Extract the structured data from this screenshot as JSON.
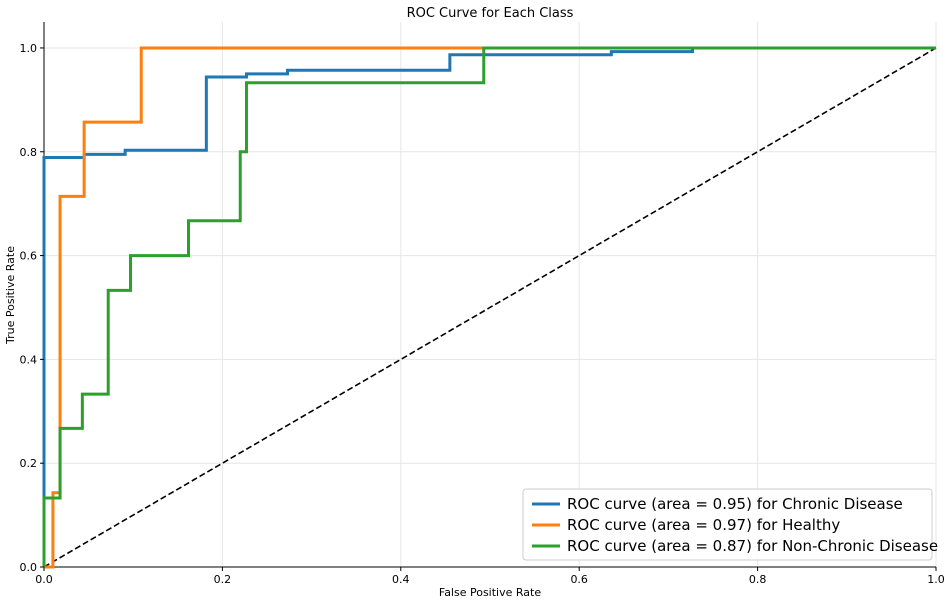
{
  "chart_data": {
    "type": "line",
    "title": "ROC Curve for Each Class",
    "xlabel": "False Positive Rate",
    "ylabel": "True Positive Rate",
    "xlim": [
      0,
      1
    ],
    "ylim": [
      0,
      1.05
    ],
    "xticks": [
      0,
      0.2,
      0.4,
      0.6,
      0.8,
      1.0
    ],
    "xtick_labels": [
      "0.0",
      "0.2",
      "0.4",
      "0.6",
      "0.8",
      "1.0"
    ],
    "yticks": [
      0,
      0.2,
      0.4,
      0.6,
      0.8,
      1.0
    ],
    "ytick_labels": [
      "0.0",
      "0.2",
      "0.4",
      "0.6",
      "0.8",
      "1.0"
    ],
    "grid": true,
    "legend_position": "lower-right",
    "series": [
      {
        "name": "ROC curve (area = 0.95) for Chronic Disease",
        "color": "#1f77b4",
        "x": [
          0,
          0,
          0,
          0.045,
          0.045,
          0.091,
          0.091,
          0.182,
          0.182,
          0.227,
          0.227,
          0.273,
          0.273,
          0.455,
          0.455,
          0.636,
          0.636,
          0.727,
          0.727,
          1.0
        ],
        "y": [
          0,
          0.0,
          0.789,
          0.789,
          0.795,
          0.795,
          0.803,
          0.803,
          0.944,
          0.944,
          0.95,
          0.95,
          0.957,
          0.957,
          0.987,
          0.987,
          0.993,
          0.993,
          1.0,
          1.0
        ]
      },
      {
        "name": "ROC curve (area = 0.97) for Healthy",
        "color": "#ff7f0e",
        "x": [
          0,
          0.01,
          0.01,
          0.018,
          0.018,
          0.045,
          0.045,
          0.109,
          0.109,
          1.0
        ],
        "y": [
          0,
          0,
          0.143,
          0.143,
          0.714,
          0.714,
          0.857,
          0.857,
          1.0,
          1.0
        ]
      },
      {
        "name": "ROC curve (area = 0.87) for Non-Chronic Disease",
        "color": "#2ca02c",
        "x": [
          0,
          0,
          0.018,
          0.018,
          0.043,
          0.043,
          0.072,
          0.072,
          0.097,
          0.097,
          0.162,
          0.162,
          0.22,
          0.22,
          0.227,
          0.227,
          0.493,
          0.493,
          1.0
        ],
        "y": [
          0,
          0.133,
          0.133,
          0.267,
          0.267,
          0.333,
          0.333,
          0.533,
          0.533,
          0.6,
          0.6,
          0.667,
          0.667,
          0.8,
          0.8,
          0.933,
          0.933,
          1.0,
          1.0
        ]
      }
    ],
    "reference_line": {
      "x": [
        0,
        1
      ],
      "y": [
        0,
        1
      ],
      "color": "#000000",
      "style": "dashed"
    }
  }
}
